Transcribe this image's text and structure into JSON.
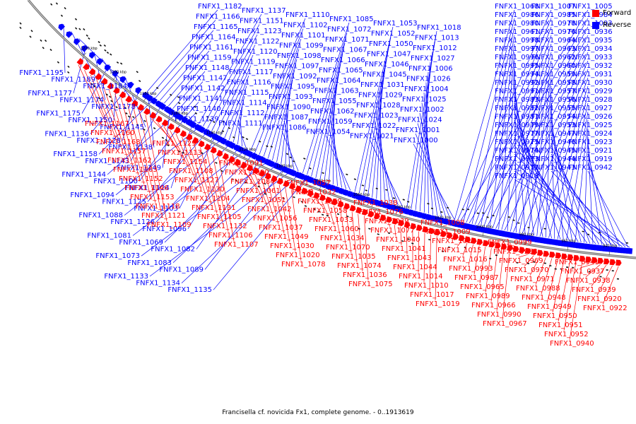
{
  "legend": {
    "forward_label": "Forward",
    "reverse_label": "Reverse",
    "forward_color": "#ff0000",
    "reverse_color": "#0000ff"
  },
  "caption": "Francisella cf. novicida Fx1, complete genome. - 0..1913619",
  "tick_labels": [
    "1220 kbp",
    "1200 kbp",
    "1180 kbp",
    "1160 kbp",
    "1140 kbp",
    "1120 kbp",
    "1100 kbp",
    "1080 kbp",
    "1060 kbp",
    "1040 kbp",
    "1020 kbp",
    "1000 kbp",
    "980 kbp",
    "960 kbp",
    "940 kbp"
  ],
  "forward_genes": [
    "FNFX1_1167",
    "FNFX1_1160",
    "FNFX1_1168",
    "FNFX1_1157",
    "FNFX1_1162",
    "FNFX1_1163",
    "FNFX1_1152",
    "FNFX1_1146",
    "FNFX1_1153",
    "FNFX1_1118",
    "FNFX1_1121",
    "FNFX1_1109",
    "FNFX1_1129",
    "FNFX1_1113",
    "FNFX1_1154",
    "FNFX1_1108",
    "FNFX1_1127",
    "FNFX1_1130",
    "FNFX1_1104",
    "FNFX1_1131",
    "FNFX1_1105",
    "FNFX1_1132",
    "FNFX1_1106",
    "FNFX1_1107",
    "FNFX1_1091",
    "FNFX1_1080",
    "FNFX1_1084",
    "FNFX1_1061",
    "FNFX1_1051",
    "FNFX1_1042",
    "FNFX1_1056",
    "FNFX1_1037",
    "FNFX1_1049",
    "FNFX1_1030",
    "FNFX1_1020",
    "FNFX1_1078",
    "FNFX1_1057",
    "FNFX1_1032",
    "FNFX1_1079",
    "FNFX1_1058",
    "FNFX1_1033",
    "FNFX1_1060",
    "FNFX1_1034",
    "FNFX1_1070",
    "FNFX1_1035",
    "FNFX1_1074",
    "FNFX1_1036",
    "FNFX1_1075",
    "FNFX1_1038",
    "FNFX1_1076",
    "FNFX1_1039",
    "FNFX1_1077",
    "FNFX1_1040",
    "FNFX1_1041",
    "FNFX1_1043",
    "FNFX1_1044",
    "FNFX1_1014",
    "FNFX1_1010",
    "FNFX1_1017",
    "FNFX1_1019",
    "FNFX1_1008",
    "FNFX1_1009",
    "FNFX1_1011",
    "FNFX1_1015",
    "FNFX1_1016",
    "FNFX1_0993",
    "FNFX1_0987",
    "FNFX1_0965",
    "FNFX1_0989",
    "FNFX1_0966",
    "FNFX1_0990",
    "FNFX1_0967",
    "FNFX1_0999",
    "FNFX1_0968",
    "FNFX1_0969",
    "FNFX1_0970",
    "FNFX1_0971",
    "FNFX1_0988",
    "FNFX1_0948",
    "FNFX1_0949",
    "FNFX1_0950",
    "FNFX1_0951",
    "FNFX1_0952",
    "FNFX1_0940",
    "FNFX1_0941",
    "FNFX1_0937",
    "FNFX1_0938",
    "FNFX1_0939",
    "FNFX1_0920",
    "FNFX1_0922"
  ],
  "reverse_genes": [
    "FNFX1_1182",
    "FNFX1_1166",
    "FNFX1_1165",
    "FNFX1_1164",
    "FNFX1_1161",
    "FNFX1_1159",
    "FNFX1_1148",
    "FNFX1_1147",
    "FNFX1_1142",
    "FNFX1_1141",
    "FNFX1_1140",
    "FNFX1_1139",
    "FNFX1_1137",
    "FNFX1_1151",
    "FNFX1_1123",
    "FNFX1_1122",
    "FNFX1_1120",
    "FNFX1_1119",
    "FNFX1_1117",
    "FNFX1_1116",
    "FNFX1_1115",
    "FNFX1_1114",
    "FNFX1_1112",
    "FNFX1_1111",
    "FNFX1_1110",
    "FNFX1_1102",
    "FNFX1_1101",
    "FNFX1_1099",
    "FNFX1_1098",
    "FNFX1_1097",
    "FNFX1_1092",
    "FNFX1_1095",
    "FNFX1_1093",
    "FNFX1_1090",
    "FNFX1_1087",
    "FNFX1_1086",
    "FNFX1_1085",
    "FNFX1_1072",
    "FNFX1_1071",
    "FNFX1_1067",
    "FNFX1_1066",
    "FNFX1_1065",
    "FNFX1_1064",
    "FNFX1_1063",
    "FNFX1_1055",
    "FNFX1_1062",
    "FNFX1_1059",
    "FNFX1_1054",
    "FNFX1_1053",
    "FNFX1_1052",
    "FNFX1_1050",
    "FNFX1_1047",
    "FNFX1_1046",
    "FNFX1_1045",
    "FNFX1_1031",
    "FNFX1_1029",
    "FNFX1_1028",
    "FNFX1_1023",
    "FNFX1_1022",
    "FNFX1_1021",
    "FNFX1_1018",
    "FNFX1_1013",
    "FNFX1_1012",
    "FNFX1_1027",
    "FNFX1_1006",
    "FNFX1_1026",
    "FNFX1_1004",
    "FNFX1_1025",
    "FNFX1_1002",
    "FNFX1_1024",
    "FNFX1_1001",
    "FNFX1_1000",
    "FNFX1_1195",
    "FNFX1_1189",
    "FNFX1_1184",
    "FNFX1_1177",
    "FNFX1_1174",
    "FNFX1_1178",
    "FNFX1_1175",
    "FNFX1_1150",
    "FNFX1_1145",
    "FNFX1_1136",
    "FNFX1_1128",
    "FNFX1_1138",
    "FNFX1_1158",
    "FNFX1_1143",
    "FNFX1_1149",
    "FNFX1_1144",
    "FNFX1_1100",
    "FNFX1_1124",
    "FNFX1_1094",
    "FNFX1_1125",
    "FNFX1_1103",
    "FNFX1_1088",
    "FNFX1_1126",
    "FNFX1_1096",
    "FNFX1_1081",
    "FNFX1_1069",
    "FNFX1_1082",
    "FNFX1_1073",
    "FNFX1_1083",
    "FNFX1_1089",
    "FNFX1_1133",
    "FNFX1_1134",
    "FNFX1_1135",
    "FNFX1_1068",
    "FNFX1_1007",
    "FNFX1_1005",
    "FNFX1_0986",
    "FNFX1_0985",
    "FNFX1_0984",
    "FNFX1_0980",
    "FNFX1_0978",
    "FNFX1_1003",
    "FNFX1_0961",
    "FNFX1_0976",
    "FNFX1_0936",
    "FNFX1_0998",
    "FNFX1_0964",
    "FNFX1_0935",
    "FNFX1_0997",
    "FNFX1_0963",
    "FNFX1_0934",
    "FNFX1_0996",
    "FNFX1_0962",
    "FNFX1_0933",
    "FNFX1_0995",
    "FNFX1_0960",
    "FNFX1_0932",
    "FNFX1_0994",
    "FNFX1_0959",
    "FNFX1_0931",
    "FNFX1_0992",
    "FNFX1_0958",
    "FNFX1_0930",
    "FNFX1_0991",
    "FNFX1_0957",
    "FNFX1_0929",
    "FNFX1_0983",
    "FNFX1_0956",
    "FNFX1_0928",
    "FNFX1_0982",
    "FNFX1_0955",
    "FNFX1_0927",
    "FNFX1_0981",
    "FNFX1_0954",
    "FNFX1_0926",
    "FNFX1_0979",
    "FNFX1_0953",
    "FNFX1_0925",
    "FNFX1_0977",
    "FNFX1_0947",
    "FNFX1_0924",
    "FNFX1_0975",
    "FNFX1_0946",
    "FNFX1_0923",
    "FNFX1_0974",
    "FNFX1_0945",
    "FNFX1_0921",
    "FNFX1_0973",
    "FNFX1_0944",
    "FNFX1_0919",
    "FNFX1_0972",
    "FNFX1_0943",
    "FNFX1_0942",
    "FNFX1_0918"
  ]
}
